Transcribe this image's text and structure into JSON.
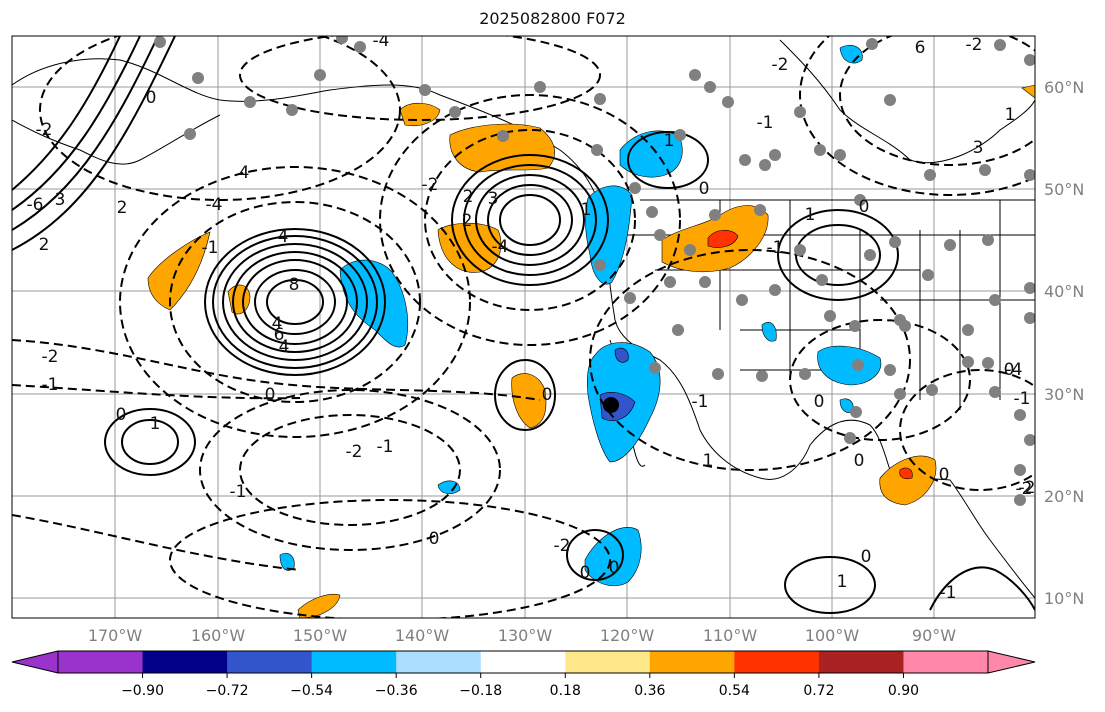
{
  "title": "2025082800 F072",
  "lat_labels": [
    "60°N",
    "50°N",
    "40°N",
    "30°N",
    "20°N",
    "10°N"
  ],
  "lon_labels": [
    "170°W",
    "160°W",
    "150°W",
    "140°W",
    "130°W",
    "120°W",
    "110°W",
    "100°W",
    "90°W"
  ],
  "colorbar": {
    "tick_labels": [
      "−0.90",
      "−0.72",
      "−0.54",
      "−0.36",
      "−0.18",
      "0.18",
      "0.36",
      "0.54",
      "0.72",
      "0.90"
    ],
    "colors": [
      "#9933cc",
      "#000088",
      "#3355cc",
      "#00bbff",
      "#aaddff",
      "#ffffff",
      "#ffe88a",
      "#ffa500",
      "#ff3300",
      "#aa2222",
      "#ff88aa"
    ]
  },
  "contour_labels": [
    "-4",
    "6",
    "-2",
    "0",
    "-6",
    "4",
    "3",
    "2",
    "2",
    "-1",
    "-2",
    "-4",
    "4",
    "2",
    "3",
    "2",
    "-4",
    "1",
    "0",
    "-1",
    "3",
    "0",
    "-1",
    "1",
    "4",
    "8",
    "6",
    "4",
    "-2",
    "-1",
    "0",
    "-1",
    "0",
    "1",
    "-2",
    "-1",
    "0",
    "-2",
    "0",
    "0",
    "0",
    "1",
    "-1",
    "0",
    "-2",
    "-4",
    "0",
    "1",
    "-1",
    "1",
    "0",
    "0",
    "-2",
    "-1",
    "0",
    "-2",
    "-2",
    "1"
  ]
}
